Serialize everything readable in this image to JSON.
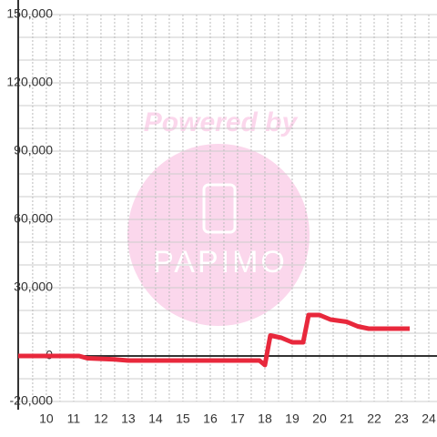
{
  "chart_data": {
    "type": "line",
    "x": [
      8.97,
      11.2,
      11.5,
      12.5,
      13,
      17.8,
      18,
      18.2,
      18.6,
      19,
      19.4,
      19.6,
      20,
      20.4,
      21,
      21.4,
      21.8,
      22,
      23.3
    ],
    "series": [
      {
        "color": "#e8283c",
        "values": [
          0,
          0,
          -1000,
          -1500,
          -2000,
          -2000,
          -4000,
          9000,
          8000,
          6000,
          6000,
          18000,
          18000,
          16000,
          15000,
          13000,
          12000,
          12000,
          12000
        ]
      }
    ],
    "xlim": [
      8.97,
      24.3
    ],
    "xticks": [
      10,
      11,
      12,
      13,
      14,
      15,
      16,
      17,
      18,
      19,
      20,
      21,
      22,
      23,
      24
    ],
    "ylim": [
      -20000,
      150000
    ],
    "yticks": [
      {
        "value": -20000,
        "label": "-20,000"
      },
      0,
      {
        "value": 30000,
        "label": "30,000"
      },
      {
        "value": 60000,
        "label": "60,000"
      },
      {
        "value": 90000,
        "label": "90,000"
      },
      {
        "value": 120000,
        "label": "120,000"
      },
      {
        "value": 150000,
        "label": "150,000"
      }
    ],
    "ygrid": [
      -10000,
      10000,
      20000,
      40000,
      50000,
      70000,
      80000,
      100000,
      110000,
      130000,
      140000
    ],
    "xgrid": [
      9.5,
      10.5,
      11.5,
      12.5,
      13.5,
      14.5,
      15.5,
      16.5,
      17.5,
      18.5,
      19.5,
      20.5,
      21.5,
      22.5,
      23.5
    ],
    "watermark": {
      "line1": "Powered by",
      "line2": "PAPIMO"
    }
  }
}
